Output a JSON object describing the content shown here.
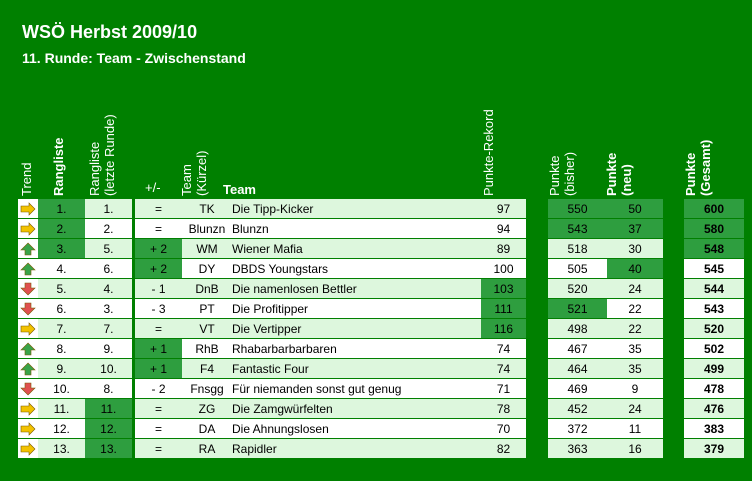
{
  "title": "WSÖ Herbst 2009/10",
  "subtitle": "11. Runde: Team - Zwischenstand",
  "headers": {
    "trend": "Trend",
    "rangliste": "Rangliste",
    "rangliste_prev": "Rangliste",
    "rangliste_prev_sub": "(letzte Runde)",
    "delta": "+/-",
    "kurz": "Team",
    "kurz_sub": "(Kürzel)",
    "team": "Team",
    "rekord": "Punkte-Rekord",
    "bisher": "Punkte",
    "bisher_sub": "(bisher)",
    "neu": "Punkte",
    "neu_sub": "(neu)",
    "gesamt": "Punkte",
    "gesamt_sub": "(Gesamt)"
  },
  "colors": {
    "background": "#008000",
    "highlight": "#2e9e3f",
    "light_row": "#ddf7dd",
    "arrow_up": "#3aa34a",
    "arrow_down": "#e05050",
    "arrow_same": "#f2c200"
  },
  "rows": [
    {
      "trend": "same",
      "rank": "1.",
      "prev": "1.",
      "delta": "=",
      "kurz": "TK",
      "team": "Die Tipp-Kicker",
      "rekord": "97",
      "bisher": "550",
      "neu": "50",
      "gesamt": "600"
    },
    {
      "trend": "same",
      "rank": "2.",
      "prev": "2.",
      "delta": "=",
      "kurz": "Blunzn",
      "team": "Blunzn",
      "rekord": "94",
      "bisher": "543",
      "neu": "37",
      "gesamt": "580"
    },
    {
      "trend": "up",
      "rank": "3.",
      "prev": "5.",
      "delta": "+ 2",
      "kurz": "WM",
      "team": "Wiener Mafia",
      "rekord": "89",
      "bisher": "518",
      "neu": "30",
      "gesamt": "548"
    },
    {
      "trend": "up",
      "rank": "4.",
      "prev": "6.",
      "delta": "+ 2",
      "kurz": "DY",
      "team": "DBDS Youngstars",
      "rekord": "100",
      "bisher": "505",
      "neu": "40",
      "gesamt": "545"
    },
    {
      "trend": "down",
      "rank": "5.",
      "prev": "4.",
      "delta": "- 1",
      "kurz": "DnB",
      "team": "Die namenlosen Bettler",
      "rekord": "103",
      "bisher": "520",
      "neu": "24",
      "gesamt": "544"
    },
    {
      "trend": "down",
      "rank": "6.",
      "prev": "3.",
      "delta": "- 3",
      "kurz": "PT",
      "team": "Die Profitipper",
      "rekord": "111",
      "bisher": "521",
      "neu": "22",
      "gesamt": "543"
    },
    {
      "trend": "same",
      "rank": "7.",
      "prev": "7.",
      "delta": "=",
      "kurz": "VT",
      "team": "Die Vertipper",
      "rekord": "116",
      "bisher": "498",
      "neu": "22",
      "gesamt": "520"
    },
    {
      "trend": "up",
      "rank": "8.",
      "prev": "9.",
      "delta": "+ 1",
      "kurz": "RhB",
      "team": "Rhabarbarbarbaren",
      "rekord": "74",
      "bisher": "467",
      "neu": "35",
      "gesamt": "502"
    },
    {
      "trend": "up",
      "rank": "9.",
      "prev": "10.",
      "delta": "+ 1",
      "kurz": "F4",
      "team": "Fantastic Four",
      "rekord": "74",
      "bisher": "464",
      "neu": "35",
      "gesamt": "499"
    },
    {
      "trend": "down",
      "rank": "10.",
      "prev": "8.",
      "delta": "- 2",
      "kurz": "Fnsgg",
      "team": "Für niemanden sonst gut genug",
      "rekord": "71",
      "bisher": "469",
      "neu": "9",
      "gesamt": "478"
    },
    {
      "trend": "same",
      "rank": "11.",
      "prev": "11.",
      "delta": "=",
      "kurz": "ZG",
      "team": "Die Zamgwürfelten",
      "rekord": "78",
      "bisher": "452",
      "neu": "24",
      "gesamt": "476"
    },
    {
      "trend": "same",
      "rank": "12.",
      "prev": "12.",
      "delta": "=",
      "kurz": "DA",
      "team": "Die Ahnungslosen",
      "rekord": "70",
      "bisher": "372",
      "neu": "11",
      "gesamt": "383"
    },
    {
      "trend": "same",
      "rank": "13.",
      "prev": "13.",
      "delta": "=",
      "kurz": "RA",
      "team": "Rapidler",
      "rekord": "82",
      "bisher": "363",
      "neu": "16",
      "gesamt": "379"
    }
  ]
}
